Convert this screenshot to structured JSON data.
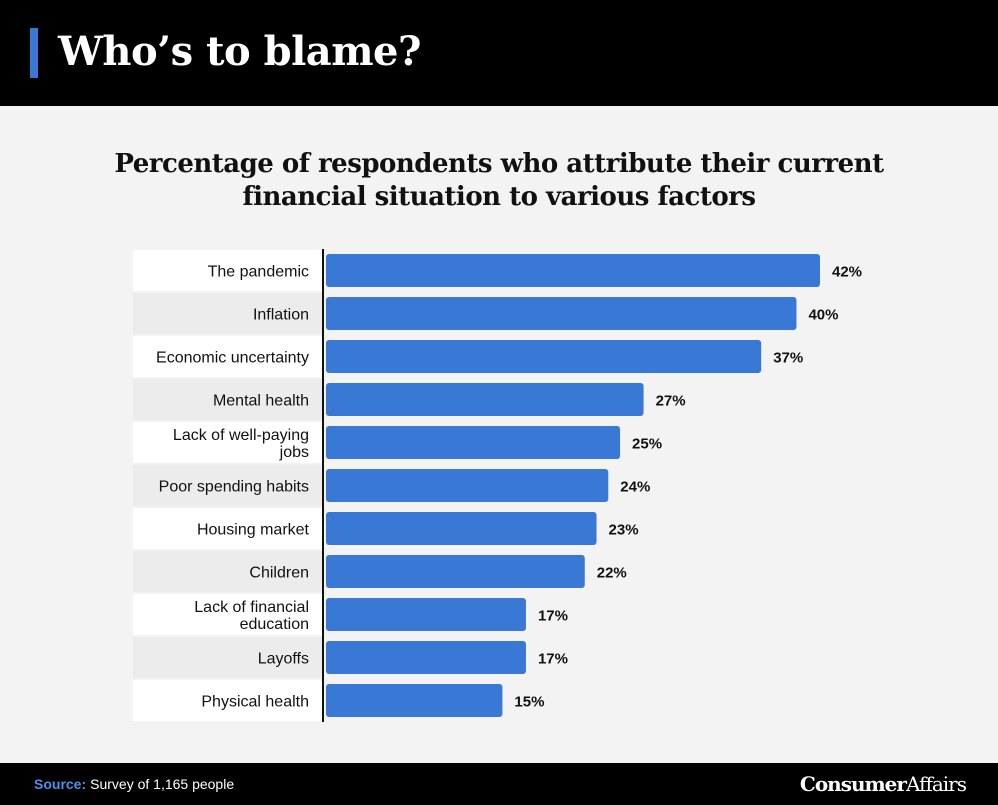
{
  "header": {
    "title": "Who’s to blame?"
  },
  "colors": {
    "bar": "#3a78d6",
    "accent": "#3a78d6",
    "header_bg": "#000000"
  },
  "chart_data": {
    "type": "bar",
    "orientation": "horizontal",
    "title": "Percentage of respondents who attribute their current financial situation to various factors",
    "categories": [
      "The pandemic",
      "Inflation",
      "Economic uncertainty",
      "Mental health",
      "Lack of well-paying jobs",
      "Poor spending habits",
      "Housing market",
      "Children",
      "Lack of financial education",
      "Layoffs",
      "Physical health"
    ],
    "category_lines": [
      [
        "The pandemic"
      ],
      [
        "Inflation"
      ],
      [
        "Economic uncertainty"
      ],
      [
        "Mental health"
      ],
      [
        "Lack of well-paying",
        "jobs"
      ],
      [
        "Poor spending habits"
      ],
      [
        "Housing market"
      ],
      [
        "Children"
      ],
      [
        "Lack of financial",
        "education"
      ],
      [
        "Layoffs"
      ],
      [
        "Physical health"
      ]
    ],
    "values": [
      42,
      40,
      37,
      27,
      25,
      24,
      23,
      22,
      17,
      17,
      15
    ],
    "value_labels": [
      "42%",
      "40%",
      "37%",
      "27%",
      "25%",
      "24%",
      "23%",
      "22%",
      "17%",
      "17%",
      "15%"
    ],
    "unit": "%",
    "xlabel": "",
    "ylabel": "",
    "grid": false,
    "legend": "none"
  },
  "footer": {
    "source_label": "Source:",
    "source_text": "Survey of 1,165 people",
    "brand_strong": "Consumer",
    "brand_rest": "Affairs"
  }
}
